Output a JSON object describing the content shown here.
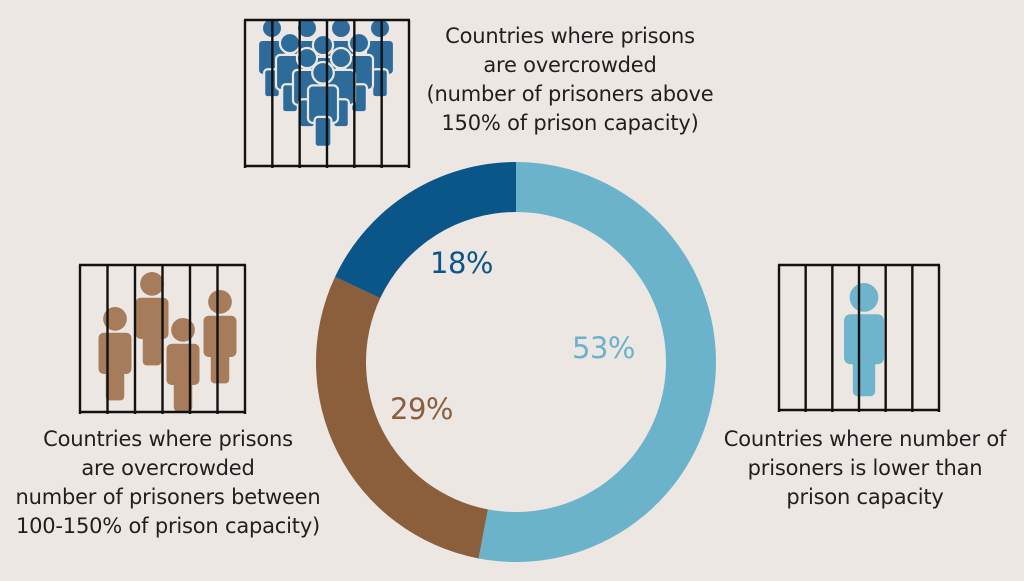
{
  "chart_data": {
    "type": "pie",
    "variant": "donut",
    "title": "",
    "categories": [
      "Countries where number of prisoners is lower than prison capacity",
      "Countries where prisons are overcrowded (number of prisoners between 100-150% of prison capacity)",
      "Countries where prisons are overcrowded (number of prisoners above 150% of prison capacity)"
    ],
    "values": [
      53,
      29,
      18
    ],
    "unit": "%",
    "colors": [
      "#6bb3cb",
      "#8b5e3c",
      "#0a5689"
    ],
    "data_labels": [
      "53%",
      "29%",
      "18%"
    ],
    "start_angle_deg": 0,
    "direction": "clockwise",
    "legend": "icon captions around chart"
  },
  "colors": {
    "background": "#ede7e4",
    "under_capacity": "#6bb3cb",
    "overcrowded_100_150": "#8b5e3c",
    "overcrowded_150_plus": "#0a5689",
    "icon_under": "#6db4cc",
    "icon_mid": "#a67c5b",
    "icon_high": "#2d6b9b",
    "bars": "#111111",
    "text": "#1f1f1f"
  },
  "segments": {
    "high": {
      "label": "18%",
      "caption": [
        "Countries where prisons",
        "are overcrowded",
        "(number of prisoners above",
        "150% of prison capacity)"
      ],
      "icon": "crowd-behind-bars-icon"
    },
    "mid": {
      "label": "29%",
      "caption": [
        "Countries where prisons",
        "are overcrowded",
        "number of prisoners between",
        "100-150% of prison capacity)"
      ],
      "icon": "group-behind-bars-icon"
    },
    "low": {
      "label": "53%",
      "caption": [
        "Countries where number of",
        "prisoners is lower than",
        "prison capacity"
      ],
      "icon": "single-person-behind-bars-icon"
    }
  }
}
